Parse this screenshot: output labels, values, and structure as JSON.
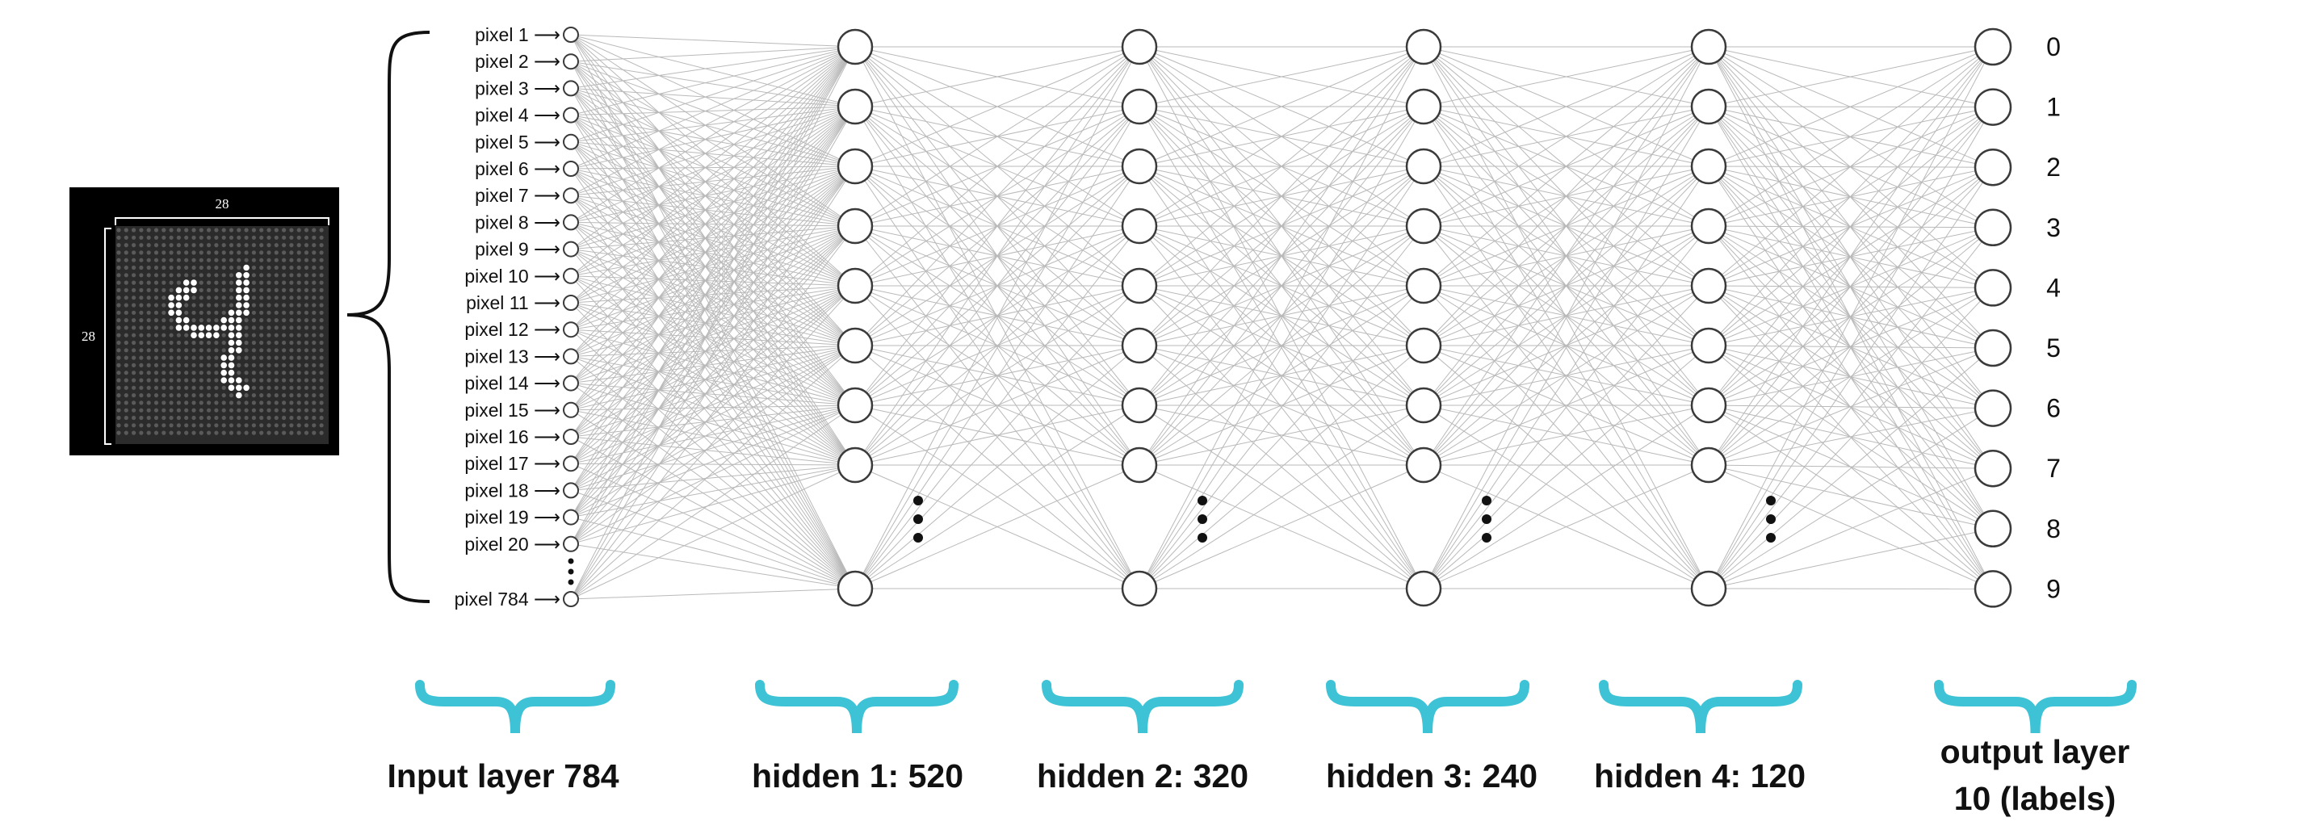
{
  "input_image": {
    "digit": "4",
    "width_label": "28",
    "height_label": "28",
    "grid": 28,
    "digit_rows": [
      "...........X....",
      "..........XX....",
      "...XX.....XX....",
      "..XXX.....XX....",
      ".XXX......XX....",
      ".XX.......XX....",
      ".XX......XXX....",
      "..XX....XXX.....",
      "..XXXXXXXXX.....",
      "....XXXX.XX.....",
      ".........XX.....",
      ".........XX.....",
      "........XX......",
      "........XX......",
      "........XX......",
      "........XXX.....",
      ".........XXX....",
      "..........X....."
    ]
  },
  "input_nodes": {
    "labels": [
      "pixel 1",
      "pixel 2",
      "pixel 3",
      "pixel 4",
      "pixel 5",
      "pixel 6",
      "pixel 7",
      "pixel 8",
      "pixel 9",
      "pixel 10",
      "pixel 11",
      "pixel 12",
      "pixel 13",
      "pixel 14",
      "pixel 15",
      "pixel 16",
      "pixel 17",
      "pixel 18",
      "pixel 19",
      "pixel 20"
    ],
    "last_label": "pixel 784",
    "arrow": "⟶"
  },
  "hidden_layer_nodes": 9,
  "output_labels": [
    "0",
    "1",
    "2",
    "3",
    "4",
    "5",
    "6",
    "7",
    "8",
    "9"
  ],
  "captions": {
    "input": "Input layer 784",
    "hidden1": "hidden 1: 520",
    "hidden2": "hidden 2: 320",
    "hidden3": "hidden 3: 240",
    "hidden4": "hidden 4: 120",
    "output_line1": "output layer",
    "output_line2": "10 (labels)"
  },
  "colors": {
    "brace_accent": "#3ec3d6",
    "edge": "#b9b9b9",
    "node_stroke": "#3a3a3a",
    "image_bg": "#000000"
  }
}
